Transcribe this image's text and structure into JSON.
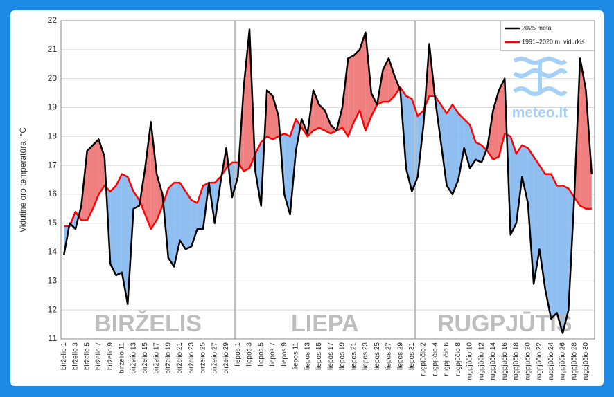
{
  "chart_data": {
    "type": "line",
    "y_label": "Vidutinė oro temperatūra, °C",
    "month_labels": [
      "BIRŽELIS",
      "LIEPA",
      "RUGPJŪTIS"
    ],
    "logo": "meteo.lt",
    "ylim": [
      11,
      22
    ],
    "yticks": [
      11,
      12,
      13,
      14,
      15,
      16,
      17,
      18,
      19,
      20,
      21,
      22
    ],
    "grid": true,
    "above_color": "#f08080",
    "below_color": "#8fbef0",
    "categories": [
      "birželio 1",
      null,
      "birželio 3",
      null,
      "birželio 5",
      null,
      "birželio 7",
      null,
      "birželio 9",
      null,
      "birželio 11",
      null,
      "birželio 13",
      null,
      "birželio 15",
      null,
      "birželio 17",
      null,
      "birželio 19",
      null,
      "birželio 21",
      null,
      "birželio 23",
      null,
      "birželio 25",
      null,
      "birželio 27",
      null,
      "birželio 29",
      null,
      "liepos 1",
      null,
      "liepos 3",
      null,
      "liepos 5",
      null,
      "liepos 7",
      null,
      "liepos 9",
      null,
      "liepos 11",
      null,
      "liepos 13",
      null,
      "liepos 15",
      null,
      "liepos 17",
      null,
      "liepos 19",
      null,
      "liepos 21",
      null,
      "liepos 23",
      null,
      "liepos 25",
      null,
      "liepos 27",
      null,
      "liepos 29",
      null,
      "liepos 31",
      null,
      "rugpjūčio 2",
      null,
      "rugpjūčio 4",
      null,
      "rugpjūčio 6",
      null,
      "rugpjūčio 8",
      null,
      "rugpjūčio 10",
      null,
      "rugpjūčio 12",
      null,
      "rugpjūčio 14",
      null,
      "rugpjūčio 16",
      null,
      "rugpjūčio 18",
      null,
      "rugpjūčio 20",
      null,
      "rugpjūčio 22",
      null,
      "rugpjūčio 24",
      null,
      "rugpjūčio 26",
      null,
      "rugpjūčio 28",
      null,
      "rugpjūčio 30",
      null
    ],
    "series": [
      {
        "name": "2025 metai",
        "color": "#000000",
        "values": [
          13.9,
          15.0,
          14.8,
          15.6,
          17.5,
          17.7,
          17.9,
          17.3,
          13.6,
          13.2,
          13.3,
          12.2,
          15.5,
          15.6,
          16.9,
          18.5,
          16.7,
          16.0,
          13.8,
          13.5,
          14.4,
          14.1,
          14.2,
          14.8,
          14.8,
          16.4,
          15.0,
          16.4,
          17.6,
          15.9,
          16.6,
          19.7,
          21.7,
          16.8,
          15.6,
          19.6,
          19.4,
          18.7,
          16.0,
          15.3,
          17.5,
          18.6,
          18.1,
          19.6,
          19.1,
          18.9,
          18.4,
          18.2,
          19.0,
          20.7,
          20.8,
          21.0,
          21.6,
          19.5,
          19.1,
          20.3,
          20.7,
          20.1,
          19.6,
          16.9,
          16.1,
          16.6,
          18.4,
          21.2,
          19.3,
          17.8,
          16.3,
          16.0,
          16.5,
          17.6,
          16.9,
          17.2,
          17.1,
          17.6,
          18.9,
          19.6,
          20.0,
          14.6,
          15.0,
          16.6,
          15.7,
          12.9,
          14.1,
          12.7,
          11.7,
          11.9,
          11.2,
          12.0,
          15.9,
          20.7,
          19.6,
          16.7
        ]
      },
      {
        "name": "1991–2020 m. vidurkis",
        "color": "#ff0000",
        "values": [
          14.9,
          14.9,
          15.4,
          15.1,
          15.1,
          15.5,
          16.0,
          16.3,
          16.1,
          16.3,
          16.7,
          16.6,
          16.1,
          15.8,
          15.3,
          14.8,
          15.1,
          15.6,
          16.2,
          16.4,
          16.4,
          16.1,
          15.8,
          15.7,
          16.3,
          16.4,
          16.4,
          16.6,
          16.9,
          17.1,
          17.1,
          16.8,
          16.9,
          17.4,
          17.8,
          18.0,
          17.9,
          18.0,
          18.1,
          18.0,
          18.6,
          18.3,
          18.0,
          18.2,
          18.3,
          18.2,
          18.1,
          18.2,
          18.3,
          18.0,
          18.5,
          18.9,
          18.2,
          18.7,
          19.1,
          19.2,
          19.2,
          19.4,
          19.7,
          19.4,
          19.3,
          18.7,
          18.9,
          19.4,
          19.4,
          19.1,
          18.8,
          19.1,
          18.8,
          18.6,
          18.4,
          17.8,
          17.7,
          17.5,
          17.2,
          17.3,
          18.1,
          18.0,
          17.4,
          17.7,
          17.6,
          17.3,
          17.0,
          16.7,
          16.7,
          16.3,
          16.3,
          16.2,
          15.9,
          15.6,
          15.5,
          15.5
        ]
      }
    ]
  }
}
